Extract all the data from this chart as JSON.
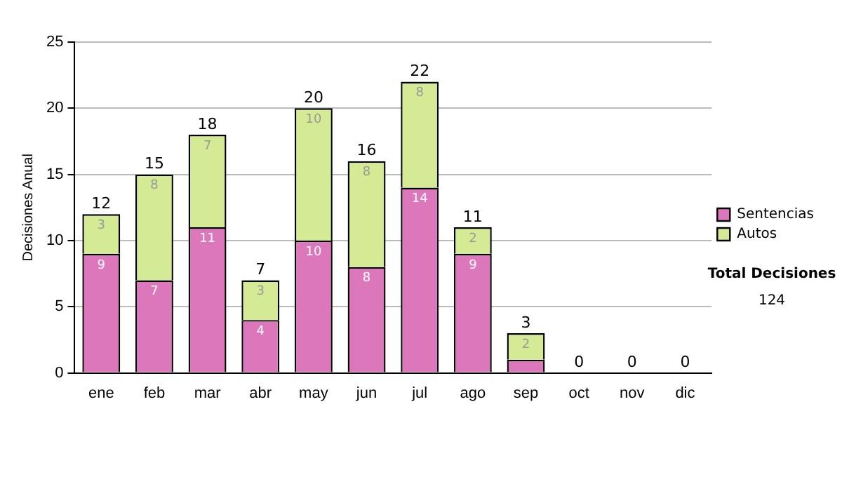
{
  "chart_data": {
    "type": "bar",
    "stacked": true,
    "ylabel": "Decisiones Anual",
    "categories": [
      "ene",
      "feb",
      "mar",
      "abr",
      "may",
      "jun",
      "jul",
      "ago",
      "sep",
      "oct",
      "nov",
      "dic"
    ],
    "series": [
      {
        "name": "Sentencias",
        "color": "#dd77bb",
        "values": [
          9,
          7,
          11,
          4,
          10,
          8,
          14,
          9,
          1,
          0,
          0,
          0
        ],
        "value_labels": [
          "9",
          "7",
          "11",
          "4",
          "10",
          "8",
          "14",
          "9",
          null,
          null,
          null,
          null
        ]
      },
      {
        "name": "Autos",
        "color": "#d4ea94",
        "values": [
          3,
          8,
          7,
          3,
          10,
          8,
          8,
          2,
          2,
          0,
          0,
          0
        ],
        "value_labels": [
          "3",
          "8",
          "7",
          "3",
          "10",
          "8",
          "8",
          "2",
          "2",
          null,
          null,
          null
        ]
      }
    ],
    "totals": [
      "12",
      "15",
      "18",
      "7",
      "20",
      "16",
      "22",
      "11",
      "3",
      "0",
      "0",
      "0"
    ],
    "ylim": [
      0,
      25
    ],
    "yticks": [
      0,
      5,
      10,
      15,
      20,
      25
    ],
    "grid": "y",
    "legend": "right",
    "annotations": [
      "Total Decisiones",
      "124"
    ]
  }
}
